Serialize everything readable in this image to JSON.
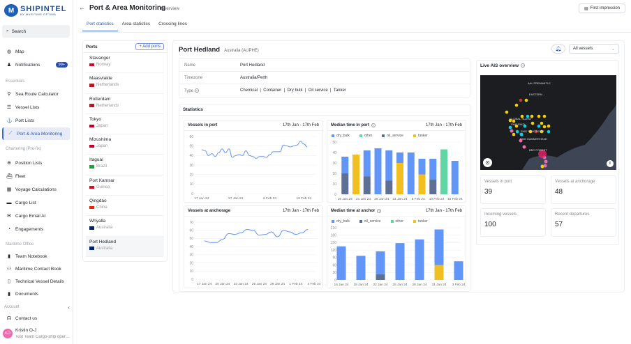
{
  "brand": {
    "name": "SHIPINTEL",
    "tagline": "BY MARITIME OPTIMA"
  },
  "sidebar": {
    "search": "Search",
    "top": [
      {
        "label": "Map",
        "icon": "globe-icon"
      },
      {
        "label": "Notifications",
        "icon": "bell-icon",
        "badge": "99+"
      }
    ],
    "sections": [
      {
        "title": "Essentials",
        "items": [
          {
            "label": "Sea Route Calculator",
            "icon": "route-icon"
          },
          {
            "label": "Vessel Lists",
            "icon": "list-icon"
          },
          {
            "label": "Port Lists",
            "icon": "anchor-icon"
          },
          {
            "label": "Port & Area Monitoring",
            "icon": "chart-icon",
            "active": true
          }
        ]
      },
      {
        "title": "Chartering (Pre-fix)",
        "items": [
          {
            "label": "Position Lists",
            "icon": "crosshair-icon"
          },
          {
            "label": "Fleet",
            "icon": "ship-icon"
          },
          {
            "label": "Voyage Calculations",
            "icon": "calculator-icon"
          },
          {
            "label": "Cargo List",
            "icon": "box-icon"
          },
          {
            "label": "Cargo Email AI",
            "icon": "mail-icon"
          },
          {
            "label": "Engagements",
            "icon": "clock-icon"
          }
        ]
      },
      {
        "title": "Maritime Office",
        "items": [
          {
            "label": "Team Notebook",
            "icon": "notebook-icon"
          },
          {
            "label": "Maritime Contact Book",
            "icon": "contacts-icon"
          },
          {
            "label": "Technical Vessel Details",
            "icon": "clipboard-icon"
          },
          {
            "label": "Documents",
            "icon": "documents-icon"
          }
        ]
      }
    ],
    "account": "Account",
    "contact": "Contact us",
    "user": {
      "initials": "KO",
      "name": "Kristin O-J",
      "team": "Test Team Cargo-ship operator"
    }
  },
  "header": {
    "back": "←",
    "title": "Port & Area Monitoring",
    "subtitle": "Overview",
    "first_impression": "First impression"
  },
  "tabs": [
    {
      "label": "Port statistics",
      "active": true
    },
    {
      "label": "Area statistics"
    },
    {
      "label": "Crossing lines"
    }
  ],
  "ports": {
    "title": "Ports",
    "add": "+ Add ports",
    "items": [
      {
        "name": "Stavanger",
        "country": "Norway",
        "flag": "#c8102e"
      },
      {
        "name": "Maasvlakte",
        "country": "Netherlands",
        "flag": "#ae1c28"
      },
      {
        "name": "Rotterdam",
        "country": "Netherlands",
        "flag": "#ae1c28"
      },
      {
        "name": "Tokyo",
        "country": "Japan",
        "flag": "#bc002d"
      },
      {
        "name": "Mizushima",
        "country": "Japan",
        "flag": "#bc002d"
      },
      {
        "name": "Itaguaí",
        "country": "Brazil",
        "flag": "#229e45"
      },
      {
        "name": "Port Kamsar",
        "country": "Guinea",
        "flag": "#ce1126"
      },
      {
        "name": "Qingdao",
        "country": "China",
        "flag": "#de2910"
      },
      {
        "name": "Whyalla",
        "country": "Australia",
        "flag": "#012169"
      },
      {
        "name": "Port Hedland",
        "country": "Australia",
        "flag": "#012169",
        "active": true
      }
    ]
  },
  "port": {
    "title": "Port Hedland",
    "subtitle": "Australia (AUPHE)",
    "info": [
      {
        "key": "Name",
        "value": "Port Hedland"
      },
      {
        "key": "Timezone",
        "value": "Australia/Perth"
      },
      {
        "key": "Type",
        "value": "Chemical  |  Container  |  Dry bulk  |  Oil service  |  Tanker"
      }
    ],
    "filter": "All vessels",
    "statistics_title": "Statistics",
    "ais_title": "Live AIS overview",
    "map_labels": [
      "AAL FREMANTLE",
      "EASTERN ...",
      "GLOBAL TALENT",
      "FMG RIKO",
      "FMG SANDTIGER",
      "FMG HAMMERHEAD",
      "BBC FOREST"
    ],
    "stats": [
      {
        "label": "Vessels in port",
        "value": "39"
      },
      {
        "label": "Vessels at anchorage",
        "value": "48"
      },
      {
        "label": "Incoming vessels",
        "value": "100"
      },
      {
        "label": "Recent departures",
        "value": "57"
      }
    ]
  },
  "colors": {
    "accent": "#3b67d1",
    "dry_bulk": "#6195f7",
    "other": "#5fd6a4",
    "oil_service": "#5d6f94",
    "tanker": "#f2bf22",
    "line": "#6195f7"
  },
  "chart_data": [
    {
      "type": "line",
      "title": "Vessels in port",
      "range": "17th Jan - 17th Feb",
      "ylim": [
        0,
        60
      ],
      "yticks": [
        0,
        10,
        20,
        30,
        40,
        50,
        60
      ],
      "xlim": [
        "2024-01-16",
        "2024-02-19"
      ],
      "xticks": [
        {
          "d": "2024-01-17",
          "label": "17 Jan 24"
        },
        {
          "d": "2024-01-27",
          "label": "27 Jan 24"
        },
        {
          "d": "2024-02-06",
          "label": "6 Feb 24"
        },
        {
          "d": "2024-02-16",
          "label": "16 Feb 24"
        }
      ],
      "x": [
        "2024-01-17",
        "2024-01-18",
        "2024-01-19",
        "2024-01-20",
        "2024-01-21",
        "2024-01-22",
        "2024-01-23",
        "2024-01-24",
        "2024-01-25",
        "2024-01-26",
        "2024-01-27",
        "2024-01-28",
        "2024-01-29",
        "2024-01-30",
        "2024-01-31",
        "2024-02-01",
        "2024-02-02",
        "2024-02-03",
        "2024-02-04",
        "2024-02-05",
        "2024-02-06",
        "2024-02-07",
        "2024-02-08",
        "2024-02-09",
        "2024-02-10",
        "2024-02-11",
        "2024-02-12",
        "2024-02-13",
        "2024-02-14",
        "2024-02-15",
        "2024-02-16",
        "2024-02-17"
      ],
      "y": [
        46,
        45,
        40,
        42,
        39,
        43,
        47,
        43,
        47,
        38,
        40,
        41,
        40,
        45,
        40,
        39,
        37,
        39,
        39,
        38,
        41,
        44,
        44,
        44,
        51,
        50,
        49,
        50,
        51,
        55,
        52,
        49
      ]
    },
    {
      "type": "bar",
      "stacked": true,
      "title": "Median time in port",
      "range": "17th Jan - 17th Feb",
      "ylim": [
        0,
        50
      ],
      "yticks": [
        0,
        10,
        20,
        30,
        40,
        50
      ],
      "xlim": [
        "2024-01-15",
        "2024-02-16"
      ],
      "legend": [
        "dry_bulk",
        "other",
        "oil_service",
        "tanker"
      ],
      "xticks": [
        {
          "d": "2024-01-16",
          "label": "16 Jan 24"
        },
        {
          "d": "2024-01-21",
          "label": "21 Jan 24"
        },
        {
          "d": "2024-01-26",
          "label": "26 Jan 24"
        },
        {
          "d": "2024-01-31",
          "label": "31 Jan 24"
        },
        {
          "d": "2024-02-05",
          "label": "5 Feb 24"
        },
        {
          "d": "2024-02-10",
          "label": "10 Feb 24"
        },
        {
          "d": "2024-02-15",
          "label": "15 Feb 24"
        }
      ],
      "x": [
        "2024-01-16",
        "2024-01-19",
        "2024-01-22",
        "2024-01-25",
        "2024-01-28",
        "2024-01-31",
        "2024-02-03",
        "2024-02-06",
        "2024-02-09",
        "2024-02-12",
        "2024-02-15"
      ],
      "series": [
        {
          "name": "oil_service",
          "values": [
            20,
            0,
            17,
            0,
            13,
            0,
            0,
            0,
            14,
            0,
            0
          ]
        },
        {
          "name": "tanker",
          "values": [
            0,
            38,
            0,
            0,
            0,
            30,
            0,
            19,
            0,
            0,
            0
          ]
        },
        {
          "name": "other",
          "values": [
            0,
            0,
            0,
            0,
            0,
            0,
            0,
            0,
            0,
            43,
            0
          ]
        },
        {
          "name": "dry_bulk",
          "values": [
            16,
            0,
            25,
            44,
            29,
            10,
            40,
            15,
            20,
            0,
            32
          ]
        }
      ]
    },
    {
      "type": "line",
      "title": "Vessels at anchorage",
      "range": "17th Jan - 17th Feb",
      "ylim": [
        0,
        70
      ],
      "yticks": [
        0,
        10,
        20,
        30,
        40,
        50,
        60,
        70
      ],
      "xlim": [
        "2024-01-16",
        "2024-02-04"
      ],
      "xticks": [
        {
          "d": "2024-01-17",
          "label": "17 Jan 24"
        },
        {
          "d": "2024-01-20",
          "label": "20 Jan 24"
        },
        {
          "d": "2024-01-23",
          "label": "23 Jan 24"
        },
        {
          "d": "2024-01-26",
          "label": "26 Jan 24"
        },
        {
          "d": "2024-01-29",
          "label": "29 Jan 24"
        },
        {
          "d": "2024-02-01",
          "label": "1 Feb 24"
        },
        {
          "d": "2024-02-04",
          "label": "4 Feb 24"
        }
      ],
      "x": [
        "2024-01-17",
        "2024-01-18",
        "2024-01-19",
        "2024-01-20",
        "2024-01-21",
        "2024-01-22",
        "2024-01-23",
        "2024-01-24",
        "2024-01-25",
        "2024-01-26",
        "2024-01-27",
        "2024-01-28",
        "2024-01-29",
        "2024-01-30",
        "2024-01-31",
        "2024-02-01",
        "2024-02-02",
        "2024-02-03"
      ],
      "y": [
        47,
        45,
        45,
        49,
        56,
        55,
        57,
        61,
        60,
        54,
        55,
        58,
        52,
        60,
        58,
        55,
        57,
        61
      ]
    },
    {
      "type": "bar",
      "stacked": true,
      "title": "Median time at anchor",
      "range": "17th Jan - 17th Feb",
      "ylim": [
        0,
        210
      ],
      "yticks": [
        0,
        30,
        60,
        90,
        120,
        150,
        180,
        210
      ],
      "xlim": [
        "2024-01-16",
        "2024-02-03"
      ],
      "legend": [
        "dry_bulk",
        "oil_service",
        "other",
        "tanker"
      ],
      "xticks": [
        {
          "d": "2024-01-16",
          "label": "16 Jan 24"
        },
        {
          "d": "2024-01-19",
          "label": "19 Jan 24"
        },
        {
          "d": "2024-01-22",
          "label": "22 Jan 24"
        },
        {
          "d": "2024-01-25",
          "label": "25 Jan 24"
        },
        {
          "d": "2024-01-28",
          "label": "28 Jan 24"
        },
        {
          "d": "2024-01-31",
          "label": "31 Jan 24"
        },
        {
          "d": "2024-02-03",
          "label": "3 Feb 24"
        }
      ],
      "x": [
        "2024-01-16",
        "2024-01-19",
        "2024-01-22",
        "2024-01-25",
        "2024-01-28",
        "2024-01-31",
        "2024-02-03"
      ],
      "series": [
        {
          "name": "oil_service",
          "values": [
            0,
            0,
            23,
            0,
            0,
            0,
            0
          ]
        },
        {
          "name": "tanker",
          "values": [
            0,
            0,
            0,
            0,
            0,
            60,
            0
          ]
        },
        {
          "name": "dry_bulk",
          "values": [
            135,
            97,
            92,
            148,
            163,
            143,
            75
          ]
        }
      ]
    }
  ]
}
